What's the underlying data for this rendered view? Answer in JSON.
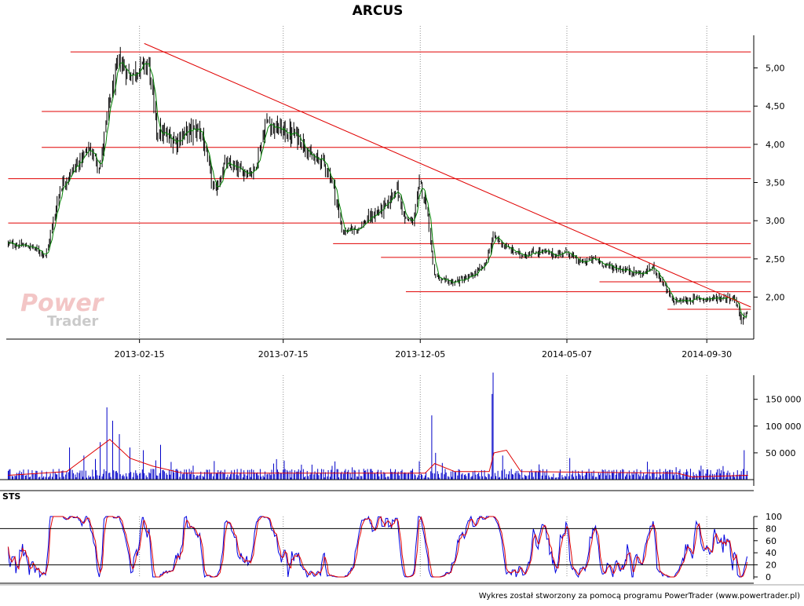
{
  "chart_data": [
    {
      "type": "candlestick",
      "title": "ARCUS",
      "x_ticks": [
        "2013-02-15",
        "2013-07-15",
        "2013-12-05",
        "2014-05-07",
        "2014-09-30"
      ],
      "y_ticks": [
        "2,00",
        "2,50",
        "3,00",
        "3,50",
        "4,00",
        "4,50",
        "5,00"
      ],
      "ylim": [
        1.45,
        5.55
      ],
      "price_path": [
        [
          "2012-10-01",
          2.7
        ],
        [
          "2012-10-25",
          2.66
        ],
        [
          "2012-11-10",
          2.55
        ],
        [
          "2012-11-25",
          3.45
        ],
        [
          "2012-12-10",
          3.7
        ],
        [
          "2012-12-25",
          3.95
        ],
        [
          "2013-01-05",
          3.7
        ],
        [
          "2013-01-15",
          4.55
        ],
        [
          "2013-01-25",
          5.1
        ],
        [
          "2013-02-05",
          4.9
        ],
        [
          "2013-02-15",
          5.0
        ],
        [
          "2013-02-25",
          5.05
        ],
        [
          "2013-03-05",
          4.2
        ],
        [
          "2013-03-15",
          4.1
        ],
        [
          "2013-03-25",
          4.05
        ],
        [
          "2013-04-05",
          4.15
        ],
        [
          "2013-04-20",
          4.2
        ],
        [
          "2013-05-05",
          3.35
        ],
        [
          "2013-05-15",
          3.75
        ],
        [
          "2013-06-01",
          3.65
        ],
        [
          "2013-06-15",
          3.65
        ],
        [
          "2013-06-28",
          4.3
        ],
        [
          "2013-07-10",
          4.2
        ],
        [
          "2013-07-20",
          4.15
        ],
        [
          "2013-08-01",
          4.1
        ],
        [
          "2013-08-15",
          3.8
        ],
        [
          "2013-08-25",
          3.8
        ],
        [
          "2013-09-05",
          3.5
        ],
        [
          "2013-09-15",
          2.85
        ],
        [
          "2013-10-01",
          2.9
        ],
        [
          "2013-10-15",
          3.05
        ],
        [
          "2013-11-01",
          3.2
        ],
        [
          "2013-11-10",
          3.45
        ],
        [
          "2013-11-20",
          3.0
        ],
        [
          "2013-11-28",
          3.0
        ],
        [
          "2013-12-05",
          3.5
        ],
        [
          "2013-12-12",
          3.2
        ],
        [
          "2013-12-20",
          2.3
        ],
        [
          "2013-12-28",
          2.2
        ],
        [
          "2014-01-10",
          2.2
        ],
        [
          "2014-01-25",
          2.25
        ],
        [
          "2014-02-10",
          2.4
        ],
        [
          "2014-02-20",
          2.8
        ],
        [
          "2014-03-05",
          2.65
        ],
        [
          "2014-03-20",
          2.55
        ],
        [
          "2014-04-10",
          2.6
        ],
        [
          "2014-04-25",
          2.55
        ],
        [
          "2014-05-07",
          2.6
        ],
        [
          "2014-05-20",
          2.45
        ],
        [
          "2014-06-05",
          2.5
        ],
        [
          "2014-06-20",
          2.4
        ],
        [
          "2014-07-10",
          2.35
        ],
        [
          "2014-07-25",
          2.3
        ],
        [
          "2014-08-05",
          2.4
        ],
        [
          "2014-08-15",
          2.2
        ],
        [
          "2014-08-25",
          1.95
        ],
        [
          "2014-09-05",
          1.95
        ],
        [
          "2014-09-20",
          1.98
        ],
        [
          "2014-10-05",
          1.98
        ],
        [
          "2014-10-20",
          2.0
        ],
        [
          "2014-10-30",
          1.98
        ],
        [
          "2014-11-05",
          1.7
        ],
        [
          "2014-11-12",
          1.8
        ]
      ],
      "support_resistance_levels": [
        {
          "value": 5.21,
          "from": "2012-12-05",
          "to": "2014-11-15"
        },
        {
          "value": 4.43,
          "from": "2012-11-05",
          "to": "2014-11-15"
        },
        {
          "value": 3.96,
          "from": "2012-11-05",
          "to": "2014-11-15"
        },
        {
          "value": 3.55,
          "from": "2012-10-01",
          "to": "2014-11-15"
        },
        {
          "value": 2.97,
          "from": "2012-10-01",
          "to": "2014-11-15"
        },
        {
          "value": 2.7,
          "from": "2013-09-05",
          "to": "2014-11-15"
        },
        {
          "value": 2.52,
          "from": "2013-10-25",
          "to": "2014-11-15"
        },
        {
          "value": 2.2,
          "from": "2014-06-10",
          "to": "2014-11-15"
        },
        {
          "value": 2.07,
          "from": "2013-11-20",
          "to": "2014-11-15"
        },
        {
          "value": 1.84,
          "from": "2014-08-20",
          "to": "2014-11-15"
        }
      ],
      "trendline": [
        [
          "2013-02-20",
          5.32
        ],
        [
          "2014-11-15",
          1.87
        ]
      ],
      "colors": {
        "candle": "#000000",
        "moving_average": "#008000",
        "levels": "#e00000",
        "trendline": "#e00000",
        "grid": "#909090"
      }
    },
    {
      "type": "bar",
      "name": "volume",
      "y_ticks": [
        "50 000",
        "100 000",
        "150 000"
      ],
      "ylim": [
        0,
        195000
      ],
      "spikes": [
        [
          "2012-12-05",
          60000
        ],
        [
          "2012-12-20",
          45000
        ],
        [
          "2013-01-05",
          70000
        ],
        [
          "2013-01-12",
          135000
        ],
        [
          "2013-01-18",
          110000
        ],
        [
          "2013-01-25",
          85000
        ],
        [
          "2013-02-05",
          60000
        ],
        [
          "2013-02-20",
          55000
        ],
        [
          "2013-03-10",
          65000
        ],
        [
          "2013-07-05",
          30000
        ],
        [
          "2013-08-15",
          28000
        ],
        [
          "2013-12-18",
          120000
        ],
        [
          "2013-12-22",
          50000
        ],
        [
          "2014-02-18",
          160000
        ],
        [
          "2014-02-20",
          200000
        ],
        [
          "2014-03-01",
          45000
        ],
        [
          "2014-11-08",
          55000
        ]
      ],
      "baseline": 12000,
      "average": [
        [
          "2012-10-01",
          8000
        ],
        [
          "2012-12-01",
          15000
        ],
        [
          "2013-01-15",
          75000
        ],
        [
          "2013-02-05",
          40000
        ],
        [
          "2013-03-01",
          25000
        ],
        [
          "2013-04-01",
          12000
        ],
        [
          "2013-12-10",
          12000
        ],
        [
          "2013-12-20",
          30000
        ],
        [
          "2014-01-10",
          15000
        ],
        [
          "2014-02-15",
          15000
        ],
        [
          "2014-02-20",
          50000
        ],
        [
          "2014-03-05",
          55000
        ],
        [
          "2014-03-20",
          15000
        ],
        [
          "2014-08-30",
          12000
        ],
        [
          "2014-09-15",
          5000
        ],
        [
          "2014-11-12",
          8000
        ]
      ],
      "colors": {
        "bars": "#0000c8",
        "average": "#e00000"
      }
    },
    {
      "type": "line",
      "name": "STS",
      "label": "STS",
      "y_ticks": [
        "0",
        "20",
        "40",
        "60",
        "80",
        "100"
      ],
      "ylim": [
        0,
        100
      ],
      "levels": [
        20,
        80
      ],
      "colors": {
        "fast": "#0000e0",
        "slow": "#e00000",
        "levels": "#000000"
      }
    }
  ],
  "logo": {
    "line1": "Power",
    "line2": "Trader"
  },
  "footer": "Wykres został stworzony za pomocą programu PowerTrader (www.powertrader.pl)"
}
